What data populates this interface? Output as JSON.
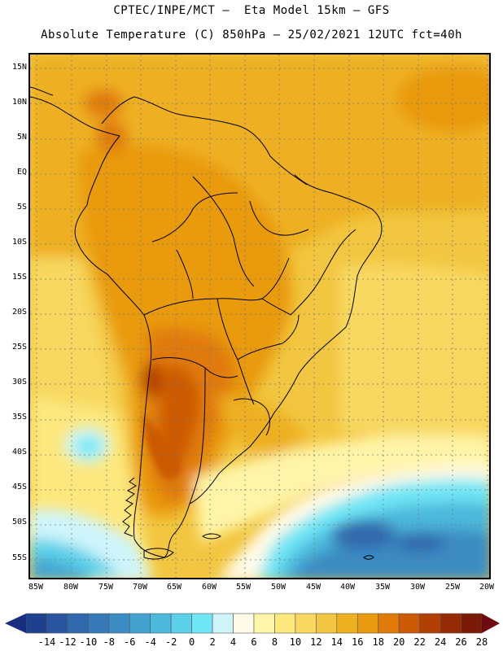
{
  "title_line1": "CPTEC/INPE/MCT –  Eta Model 15km – GFS",
  "title_line2": "Absolute Temperature (C) 850hPa – 25/02/2021 12UTC fct=40h",
  "lat_labels": [
    "15N",
    "10N",
    "5N",
    "EQ",
    "5S",
    "10S",
    "15S",
    "20S",
    "25S",
    "30S",
    "35S",
    "40S",
    "45S",
    "50S",
    "55S"
  ],
  "lon_labels": [
    "85W",
    "80W",
    "75W",
    "70W",
    "65W",
    "60W",
    "55W",
    "50W",
    "45W",
    "40W",
    "35W",
    "30W",
    "25W",
    "20W"
  ],
  "colorbar": {
    "labels": [
      "-14",
      "-12",
      "-10",
      "-8",
      "-6",
      "-4",
      "-2",
      "0",
      "2",
      "4",
      "6",
      "8",
      "10",
      "12",
      "14",
      "16",
      "18",
      "20",
      "22",
      "24",
      "26",
      "28"
    ],
    "colors": [
      "#1f3f8f",
      "#2a55a0",
      "#3069ad",
      "#3579b6",
      "#3b8cc2",
      "#42a2cf",
      "#4bb8dc",
      "#5ad0e9",
      "#6fe6f5",
      "#cff5fb",
      "#fffbe8",
      "#fff5a8",
      "#fde87e",
      "#f8d860",
      "#f2c640",
      "#eeb020",
      "#e99a10",
      "#e07a08",
      "#cc5a06",
      "#b43f05",
      "#962a04",
      "#7a1a04"
    ],
    "low_arrow_color": "#1a2e80",
    "high_arrow_color": "#6e0b10"
  }
}
